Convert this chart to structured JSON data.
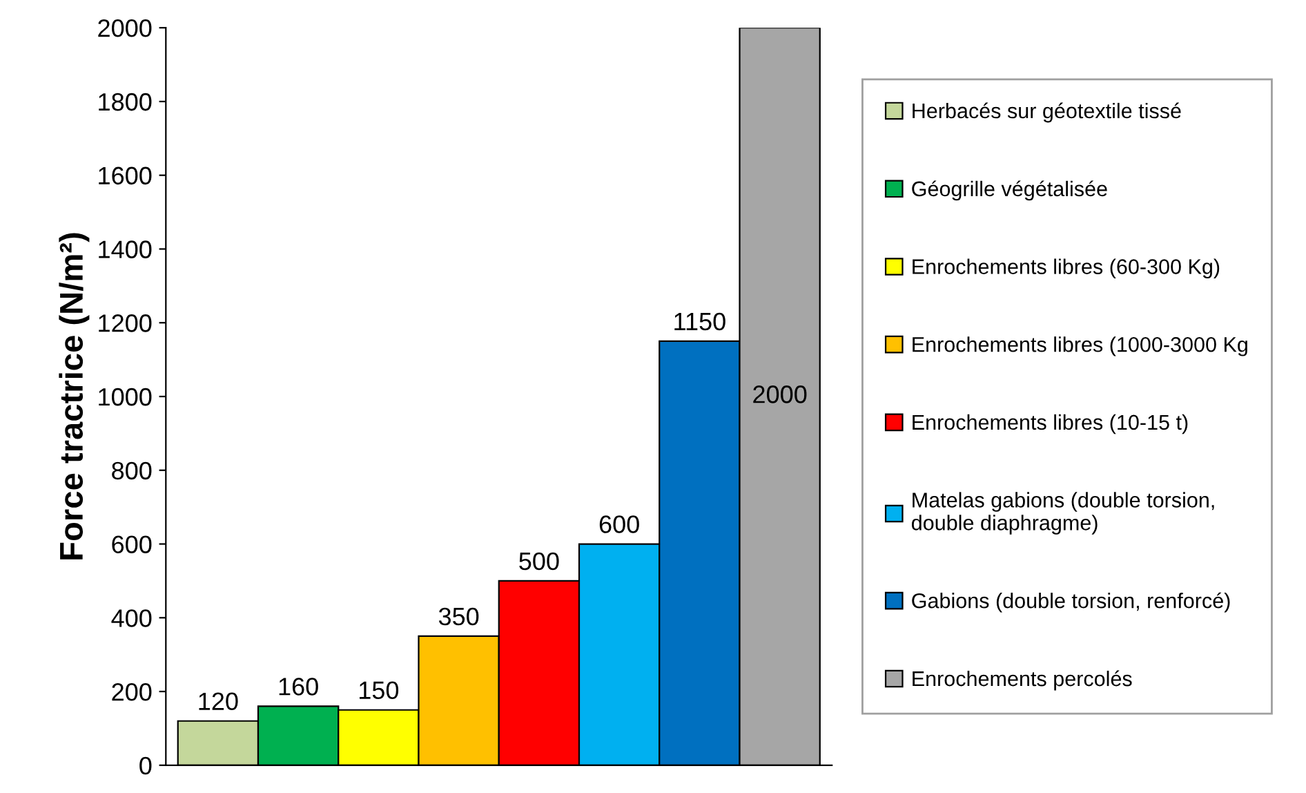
{
  "chart_data": {
    "type": "bar",
    "ylabel": "Force tractrice (N/m²)",
    "categories": [
      null,
      null,
      null,
      null,
      null,
      null,
      null,
      null
    ],
    "series": [
      {
        "name": "Herbacés sur géotextile tissé",
        "color": "#c4d79b",
        "values": [
          120,
          null,
          null,
          null,
          null,
          null,
          null,
          null
        ]
      },
      {
        "name": "Géogrille végétalisée",
        "color": "#00b050",
        "values": [
          null,
          160,
          null,
          null,
          null,
          null,
          null,
          null
        ]
      },
      {
        "name": "Enrochements libres (60-300 Kg)",
        "color": "#ffff00",
        "values": [
          null,
          null,
          150,
          null,
          null,
          null,
          null,
          null
        ]
      },
      {
        "name": "Enrochements libres (1000-3000 Kg",
        "color": "#ffc000",
        "values": [
          null,
          null,
          null,
          350,
          null,
          null,
          null,
          null
        ]
      },
      {
        "name": "Enrochements libres (10-15 t)",
        "color": "#ff0000",
        "values": [
          null,
          null,
          null,
          null,
          500,
          null,
          null,
          null
        ]
      },
      {
        "name": "Matelas gabions (double torsion,\ndouble diaphragme)",
        "color": "#00b0f0",
        "values": [
          null,
          null,
          null,
          null,
          null,
          600,
          null,
          null
        ]
      },
      {
        "name": "Gabions (double torsion, renforcé)",
        "color": "#0070c0",
        "values": [
          null,
          null,
          null,
          null,
          null,
          null,
          1150,
          null
        ]
      },
      {
        "name": "Enrochements percolés",
        "color": "#a6a6a6",
        "values": [
          null,
          null,
          null,
          null,
          null,
          null,
          null,
          2000
        ]
      }
    ],
    "ylim": [
      0,
      2000
    ],
    "yticks": [
      0,
      200,
      400,
      600,
      800,
      1000,
      1200,
      1400,
      1600,
      1800,
      2000
    ],
    "data_labels": true,
    "legend": "right",
    "tick_labels": "y",
    "grid": false
  }
}
